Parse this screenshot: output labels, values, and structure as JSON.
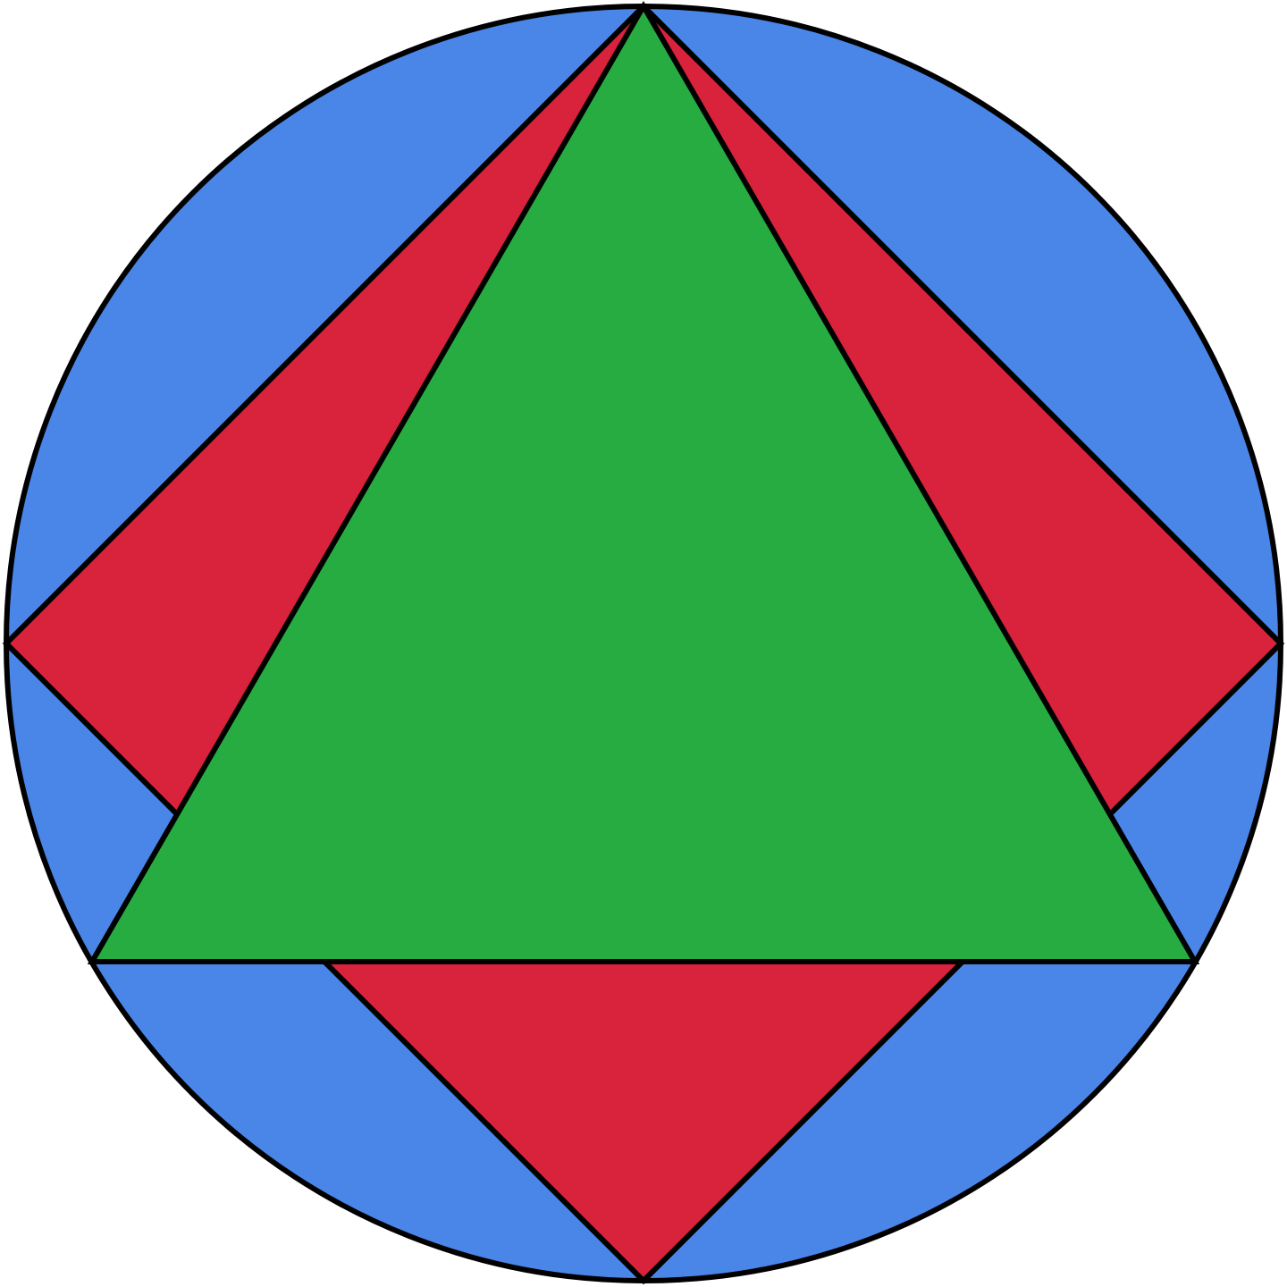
{
  "figure": {
    "shapes": [
      {
        "name": "circumscribed-circle",
        "kind": "circle"
      },
      {
        "name": "inscribed-square",
        "kind": "square"
      },
      {
        "name": "inscribed-equilateral-triangle",
        "kind": "triangle"
      }
    ]
  },
  "colors": {
    "circle_fill": "#4A86E8",
    "square_fill": "#D9223C",
    "triangle_fill": "#27AC41",
    "outline": "#000000",
    "background": "#FFFFFF"
  }
}
